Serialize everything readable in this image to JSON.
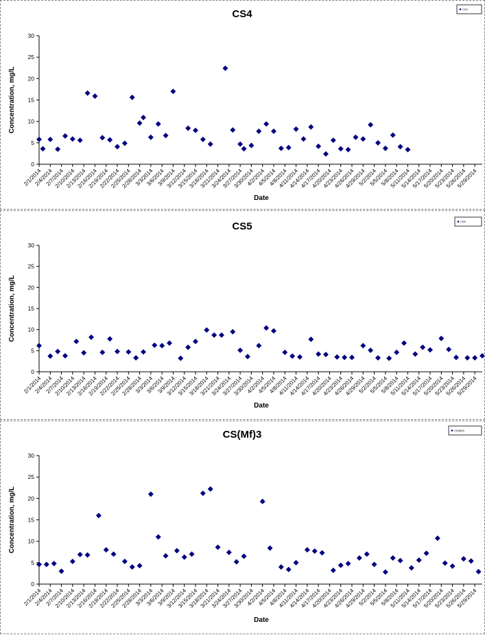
{
  "marker_color": "#000080",
  "chart_data": [
    {
      "type": "scatter",
      "title": "CS4",
      "xlabel": "Date",
      "ylabel": "Concentration, mg/L",
      "legend": "CS4",
      "legend_position": "top-right",
      "ylim": [
        0,
        30
      ],
      "yticks": [
        0,
        5,
        10,
        15,
        20,
        25,
        30
      ],
      "xlim": [
        "2/1/2014",
        "5/31/2014"
      ],
      "xticks": [
        "2/1/2014",
        "2/4/2014",
        "2/7/2014",
        "2/10/2014",
        "2/13/2014",
        "2/16/2014",
        "2/19/2014",
        "2/22/2014",
        "2/25/2014",
        "2/28/2014",
        "3/3/2014",
        "3/6/2014",
        "3/9/2014",
        "3/12/2014",
        "3/15/2014",
        "3/18/2014",
        "3/21/2014",
        "3/24/2014",
        "3/27/2014",
        "3/30/2014",
        "4/2/2014",
        "4/5/2014",
        "4/8/2014",
        "4/11/2014",
        "4/14/2014",
        "4/17/2014",
        "4/20/2014",
        "4/23/2014",
        "4/26/2014",
        "4/29/2014",
        "5/2/2014",
        "5/5/2014",
        "5/8/2014",
        "5/11/2014",
        "5/14/2014",
        "5/17/2014",
        "5/20/2014",
        "5/23/2014",
        "5/26/2014",
        "5/29/2014"
      ],
      "points": [
        [
          "2/1/2014",
          5.8
        ],
        [
          "2/2/2014",
          3.6
        ],
        [
          "2/4/2014",
          5.8
        ],
        [
          "2/6/2014",
          3.5
        ],
        [
          "2/8/2014",
          6.6
        ],
        [
          "2/10/2014",
          5.9
        ],
        [
          "2/12/2014",
          5.6
        ],
        [
          "2/14/2014",
          16.6
        ],
        [
          "2/16/2014",
          15.9
        ],
        [
          "2/18/2014",
          6.2
        ],
        [
          "2/20/2014",
          5.7
        ],
        [
          "2/22/2014",
          4.1
        ],
        [
          "2/24/2014",
          4.9
        ],
        [
          "2/26/2014",
          15.6
        ],
        [
          "2/28/2014",
          9.6
        ],
        [
          "3/1/2014",
          10.9
        ],
        [
          "3/3/2014",
          6.3
        ],
        [
          "3/5/2014",
          9.4
        ],
        [
          "3/7/2014",
          6.7
        ],
        [
          "3/9/2014",
          17.0
        ],
        [
          "3/13/2014",
          8.4
        ],
        [
          "3/15/2014",
          7.9
        ],
        [
          "3/17/2014",
          5.8
        ],
        [
          "3/19/2014",
          4.7
        ],
        [
          "3/23/2014",
          22.4
        ],
        [
          "3/25/2014",
          8.0
        ],
        [
          "3/27/2014",
          4.7
        ],
        [
          "3/28/2014",
          3.6
        ],
        [
          "3/30/2014",
          4.4
        ],
        [
          "4/1/2014",
          7.7
        ],
        [
          "4/3/2014",
          9.4
        ],
        [
          "4/5/2014",
          7.7
        ],
        [
          "4/7/2014",
          3.7
        ],
        [
          "4/9/2014",
          3.9
        ],
        [
          "4/11/2014",
          8.2
        ],
        [
          "4/13/2014",
          5.9
        ],
        [
          "4/15/2014",
          8.7
        ],
        [
          "4/17/2014",
          4.2
        ],
        [
          "4/19/2014",
          2.4
        ],
        [
          "4/21/2014",
          5.6
        ],
        [
          "4/23/2014",
          3.6
        ],
        [
          "4/25/2014",
          3.4
        ],
        [
          "4/27/2014",
          6.3
        ],
        [
          "4/29/2014",
          5.9
        ],
        [
          "5/1/2014",
          9.2
        ],
        [
          "5/3/2014",
          5.0
        ],
        [
          "5/5/2014",
          3.7
        ],
        [
          "5/7/2014",
          6.8
        ],
        [
          "5/9/2014",
          4.1
        ],
        [
          "5/11/2014",
          3.4
        ]
      ]
    },
    {
      "type": "scatter",
      "title": "CS5",
      "xlabel": "Date",
      "ylabel": "Concentration, mg/L",
      "legend": "CS5",
      "legend_position": "top-right",
      "ylim": [
        0,
        30
      ],
      "yticks": [
        0,
        5,
        10,
        15,
        20,
        25,
        30
      ],
      "xlim": [
        "2/1/2014",
        "5/31/2014"
      ],
      "xticks": [
        "2/1/2014",
        "2/4/2014",
        "2/7/2014",
        "2/10/2014",
        "2/13/2014",
        "2/16/2014",
        "2/19/2014",
        "2/22/2014",
        "2/25/2014",
        "2/28/2014",
        "3/3/2014",
        "3/6/2014",
        "3/9/2014",
        "3/12/2014",
        "3/15/2014",
        "3/18/2014",
        "3/21/2014",
        "3/24/2014",
        "3/27/2014",
        "3/30/2014",
        "4/2/2014",
        "4/5/2014",
        "4/8/2014",
        "4/11/2014",
        "4/14/2014",
        "4/17/2014",
        "4/20/2014",
        "4/23/2014",
        "4/26/2014",
        "4/29/2014",
        "5/2/2014",
        "5/5/2014",
        "5/8/2014",
        "5/11/2014",
        "5/14/2014",
        "5/17/2014",
        "5/20/2014",
        "5/23/2014",
        "5/26/2014",
        "5/29/2014"
      ],
      "points": [
        [
          "2/1/2014",
          6.2
        ],
        [
          "2/4/2014",
          3.7
        ],
        [
          "2/6/2014",
          4.8
        ],
        [
          "2/8/2014",
          3.8
        ],
        [
          "2/11/2014",
          7.2
        ],
        [
          "2/13/2014",
          4.5
        ],
        [
          "2/15/2014",
          8.2
        ],
        [
          "2/18/2014",
          4.6
        ],
        [
          "2/20/2014",
          7.8
        ],
        [
          "2/22/2014",
          4.8
        ],
        [
          "2/25/2014",
          4.7
        ],
        [
          "2/27/2014",
          3.3
        ],
        [
          "3/1/2014",
          4.7
        ],
        [
          "3/4/2014",
          6.3
        ],
        [
          "3/6/2014",
          6.2
        ],
        [
          "3/8/2014",
          6.8
        ],
        [
          "3/11/2014",
          3.2
        ],
        [
          "3/13/2014",
          5.8
        ],
        [
          "3/15/2014",
          7.2
        ],
        [
          "3/18/2014",
          9.9
        ],
        [
          "3/20/2014",
          8.7
        ],
        [
          "3/22/2014",
          8.7
        ],
        [
          "3/25/2014",
          9.5
        ],
        [
          "3/27/2014",
          5.1
        ],
        [
          "3/29/2014",
          3.6
        ],
        [
          "4/1/2014",
          6.2
        ],
        [
          "4/3/2014",
          10.4
        ],
        [
          "4/5/2014",
          9.7
        ],
        [
          "4/8/2014",
          4.6
        ],
        [
          "4/10/2014",
          3.7
        ],
        [
          "4/12/2014",
          3.5
        ],
        [
          "4/15/2014",
          7.7
        ],
        [
          "4/17/2014",
          4.2
        ],
        [
          "4/19/2014",
          4.1
        ],
        [
          "4/22/2014",
          3.5
        ],
        [
          "4/24/2014",
          3.4
        ],
        [
          "4/26/2014",
          3.4
        ],
        [
          "4/29/2014",
          6.2
        ],
        [
          "5/1/2014",
          5.1
        ],
        [
          "5/3/2014",
          3.3
        ],
        [
          "5/6/2014",
          3.2
        ],
        [
          "5/8/2014",
          4.6
        ],
        [
          "5/10/2014",
          6.8
        ],
        [
          "5/13/2014",
          4.2
        ],
        [
          "5/15/2014",
          5.8
        ],
        [
          "5/17/2014",
          5.2
        ],
        [
          "5/20/2014",
          7.9
        ],
        [
          "5/22/2014",
          5.3
        ],
        [
          "5/24/2014",
          3.4
        ],
        [
          "5/27/2014",
          3.3
        ],
        [
          "5/29/2014",
          3.3
        ],
        [
          "5/31/2014",
          3.8
        ]
      ]
    },
    {
      "type": "scatter",
      "title": "CS(Mf)3",
      "xlabel": "Date",
      "ylabel": "Concentration, mg/L",
      "legend": "CS(Mf)3",
      "legend_position": "top-right",
      "ylim": [
        0,
        30
      ],
      "yticks": [
        0,
        5,
        10,
        15,
        20,
        25,
        30
      ],
      "xlim": [
        "2/1/2014",
        "5/31/2014"
      ],
      "xticks": [
        "2/1/2014",
        "2/4/2014",
        "2/7/2014",
        "2/10/2014",
        "2/13/2014",
        "2/16/2014",
        "2/19/2014",
        "2/22/2014",
        "2/25/2014",
        "2/28/2014",
        "3/3/2014",
        "3/6/2014",
        "3/9/2014",
        "3/12/2014",
        "3/15/2014",
        "3/18/2014",
        "3/21/2014",
        "3/24/2014",
        "3/27/2014",
        "3/30/2014",
        "4/2/2014",
        "4/5/2014",
        "4/8/2014",
        "4/11/2014",
        "4/14/2014",
        "4/17/2014",
        "4/20/2014",
        "4/23/2014",
        "4/26/2014",
        "4/29/2014",
        "5/2/2014",
        "5/5/2014",
        "5/8/2014",
        "5/11/2014",
        "5/14/2014",
        "5/17/2014",
        "5/20/2014",
        "5/23/2014",
        "5/26/2014",
        "5/29/2014"
      ],
      "points": [
        [
          "2/1/2014",
          4.6
        ],
        [
          "2/3/2014",
          4.6
        ],
        [
          "2/5/2014",
          4.8
        ],
        [
          "2/7/2014",
          3.0
        ],
        [
          "2/10/2014",
          5.3
        ],
        [
          "2/12/2014",
          6.9
        ],
        [
          "2/14/2014",
          6.8
        ],
        [
          "2/17/2014",
          16.0
        ],
        [
          "2/19/2014",
          8.0
        ],
        [
          "2/21/2014",
          7.0
        ],
        [
          "2/24/2014",
          5.3
        ],
        [
          "2/26/2014",
          4.0
        ],
        [
          "2/28/2014",
          4.3
        ],
        [
          "3/3/2014",
          21.0
        ],
        [
          "3/5/2014",
          11.0
        ],
        [
          "3/7/2014",
          6.6
        ],
        [
          "3/10/2014",
          7.8
        ],
        [
          "3/12/2014",
          6.3
        ],
        [
          "3/14/2014",
          7.0
        ],
        [
          "3/17/2014",
          21.2
        ],
        [
          "3/19/2014",
          22.2
        ],
        [
          "3/21/2014",
          8.6
        ],
        [
          "3/24/2014",
          7.4
        ],
        [
          "3/26/2014",
          5.2
        ],
        [
          "3/28/2014",
          6.5
        ],
        [
          "4/2/2014",
          19.3
        ],
        [
          "4/4/2014",
          8.4
        ],
        [
          "4/7/2014",
          4.0
        ],
        [
          "4/9/2014",
          3.4
        ],
        [
          "4/11/2014",
          5.0
        ],
        [
          "4/14/2014",
          8.0
        ],
        [
          "4/16/2014",
          7.7
        ],
        [
          "4/18/2014",
          7.3
        ],
        [
          "4/21/2014",
          3.2
        ],
        [
          "4/23/2014",
          4.4
        ],
        [
          "4/25/2014",
          4.8
        ],
        [
          "4/28/2014",
          6.1
        ],
        [
          "4/30/2014",
          7.0
        ],
        [
          "5/2/2014",
          4.6
        ],
        [
          "5/5/2014",
          2.8
        ],
        [
          "5/7/2014",
          6.1
        ],
        [
          "5/9/2014",
          5.5
        ],
        [
          "5/12/2014",
          3.8
        ],
        [
          "5/14/2014",
          5.6
        ],
        [
          "5/16/2014",
          7.2
        ],
        [
          "5/19/2014",
          10.7
        ],
        [
          "5/21/2014",
          4.9
        ],
        [
          "5/23/2014",
          4.2
        ],
        [
          "5/26/2014",
          5.9
        ],
        [
          "5/28/2014",
          5.4
        ],
        [
          "5/30/2014",
          2.9
        ]
      ]
    }
  ]
}
